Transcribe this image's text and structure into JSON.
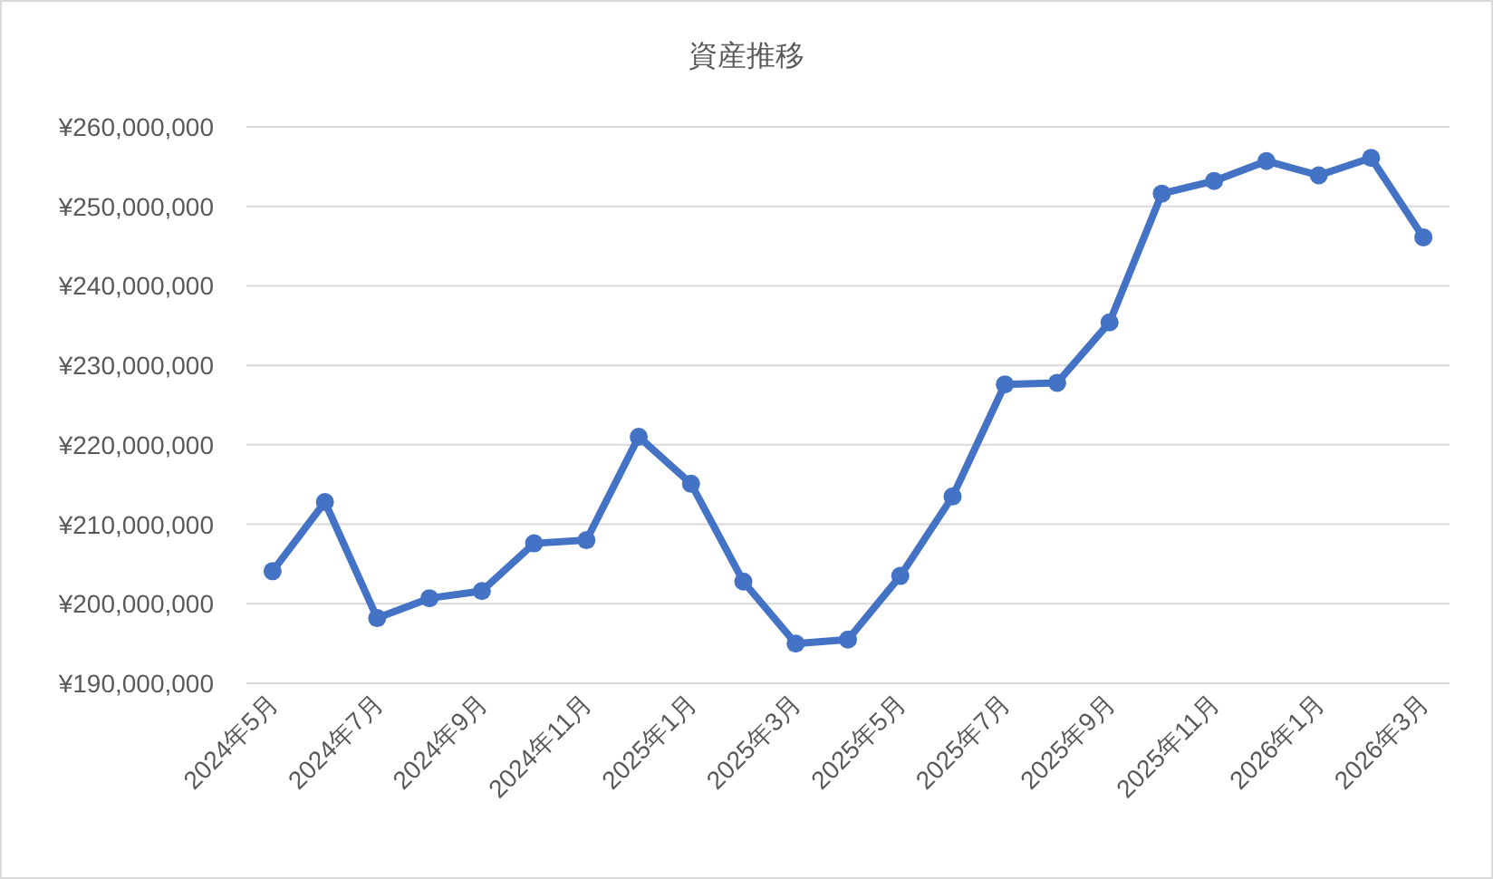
{
  "chart_data": {
    "type": "line",
    "title": "資産推移",
    "categories": [
      "2024年5月",
      null,
      "2024年7月",
      null,
      "2024年9月",
      null,
      "2024年11月",
      null,
      "2025年1月",
      null,
      "2025年3月",
      null,
      "2025年5月",
      null,
      "2025年7月",
      null,
      "2025年9月",
      null,
      "2025年11月",
      null,
      "2026年1月",
      null,
      "2026年3月"
    ],
    "series": [
      {
        "color": "#4472c4",
        "values": [
          204100000,
          212800000,
          198200000,
          200700000,
          201600000,
          207600000,
          208000000,
          221000000,
          215100000,
          202800000,
          195000000,
          195500000,
          203500000,
          213500000,
          227600000,
          227800000,
          235400000,
          251600000,
          253200000,
          255700000,
          253900000,
          256100000,
          246100000
        ]
      }
    ],
    "ylim": [
      190000000,
      260000000
    ],
    "yticks": [
      {
        "value": 190000000,
        "label": "¥190,000,000"
      },
      {
        "value": 200000000,
        "label": "¥200,000,000"
      },
      {
        "value": 210000000,
        "label": "¥210,000,000"
      },
      {
        "value": 220000000,
        "label": "¥220,000,000"
      },
      {
        "value": 230000000,
        "label": "¥230,000,000"
      },
      {
        "value": 240000000,
        "label": "¥240,000,000"
      },
      {
        "value": 250000000,
        "label": "¥250,000,000"
      },
      {
        "value": 260000000,
        "label": "¥260,000,000"
      }
    ],
    "grid": "y",
    "marker": "circle",
    "line_style": "solid"
  }
}
